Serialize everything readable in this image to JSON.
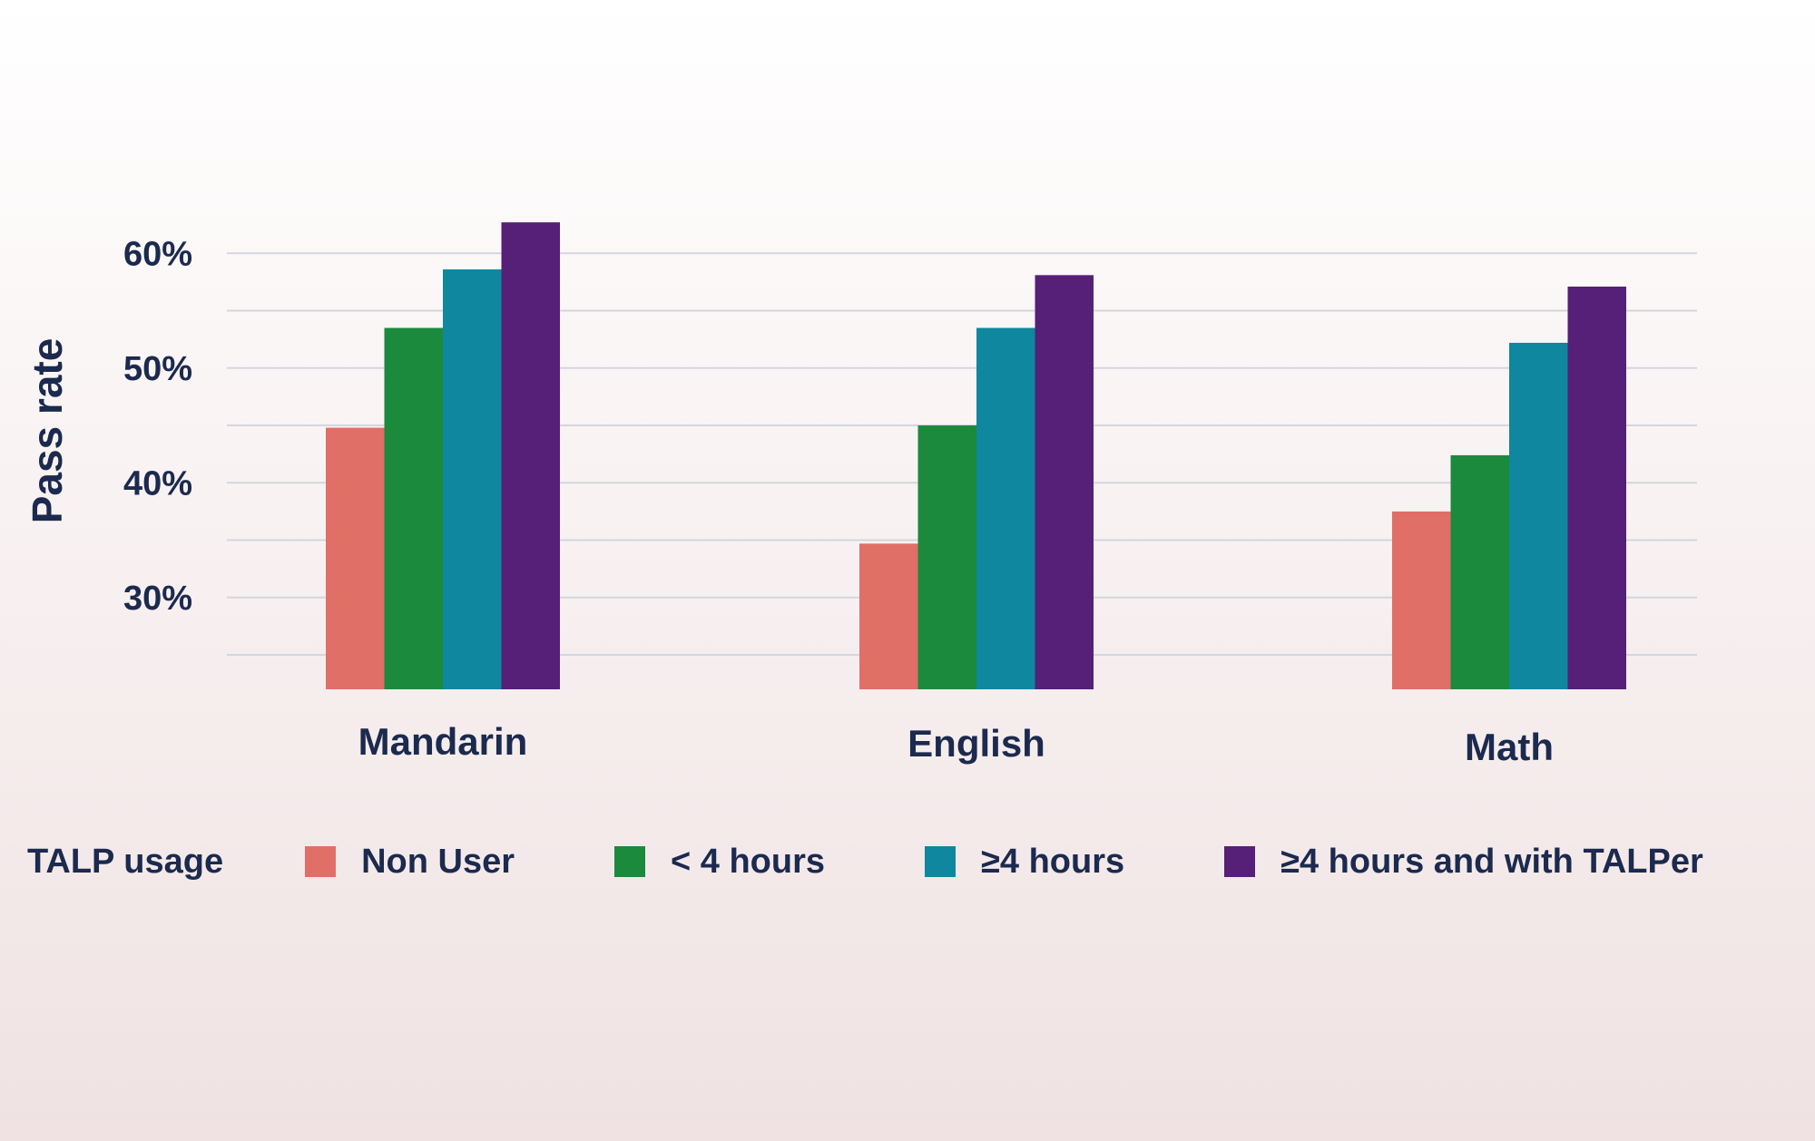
{
  "chart_data": {
    "type": "bar",
    "title": "",
    "xlabel": "",
    "ylabel": "Pass rate",
    "ylim": [
      22,
      65
    ],
    "yticks": [
      30,
      40,
      50,
      60
    ],
    "ytick_labels": [
      "30%",
      "40%",
      "50%",
      "60%"
    ],
    "gridlines": [
      25,
      30,
      35,
      40,
      45,
      50,
      55,
      60
    ],
    "categories": [
      "Mandarin",
      "English",
      "Math"
    ],
    "legend_title": "TALP usage",
    "series": [
      {
        "name": "Non User",
        "color": "#e06f68",
        "values": [
          44.8,
          34.7,
          37.5
        ]
      },
      {
        "name": "< 4 hours",
        "color": "#1b8a3d",
        "values": [
          53.5,
          45.0,
          42.4
        ]
      },
      {
        "name": "≥4 hours",
        "color": "#0f879f",
        "values": [
          58.6,
          53.5,
          52.2
        ]
      },
      {
        "name": "≥4 hours and with TALPer",
        "color": "#561f78",
        "values": [
          62.7,
          58.1,
          57.1
        ]
      }
    ]
  }
}
